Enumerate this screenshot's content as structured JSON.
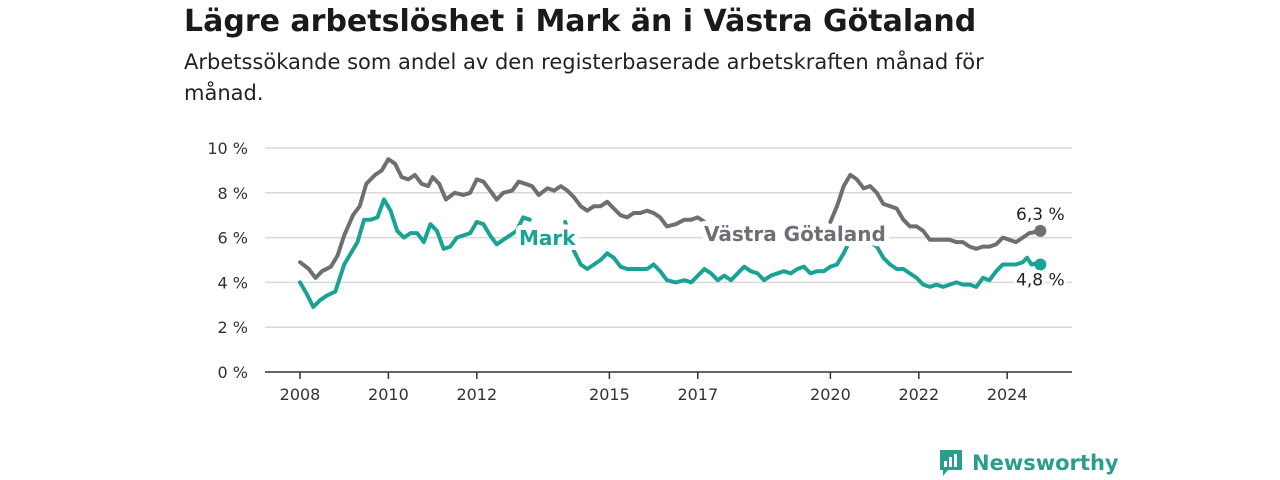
{
  "title": "Lägre arbetslöshet i Mark än i Västra Götaland",
  "subtitle": "Arbetssökande som andel av den registerbaserade arbetskraften månad för månad.",
  "brand": {
    "name": "Newsworthy",
    "icon": "bar-chart-speech-bubble-icon"
  },
  "colors": {
    "mark": "#1aa394",
    "vg": "#6e6e73",
    "brand": "#2a9d8f"
  },
  "chart_data": {
    "type": "line",
    "ylim": [
      0,
      10
    ],
    "yticks": [
      "0 %",
      "2 %",
      "4 %",
      "6 %",
      "8 %",
      "10 %"
    ],
    "xlim": [
      2008.0,
      2024.75
    ],
    "xticks": [
      {
        "value": 2008,
        "label": "2008"
      },
      {
        "value": 2010,
        "label": "2010"
      },
      {
        "value": 2012,
        "label": "2012"
      },
      {
        "value": 2015,
        "label": "2015"
      },
      {
        "value": 2017,
        "label": "2017"
      },
      {
        "value": 2020,
        "label": "2020"
      },
      {
        "value": 2022,
        "label": "2022"
      },
      {
        "value": 2024,
        "label": "2024"
      }
    ],
    "grid": true,
    "series": [
      {
        "name": "Västra Götaland",
        "color": "#6e6e73",
        "end_label": "6,3 %",
        "points": [
          [
            2008.0,
            4.9
          ],
          [
            2008.2,
            4.6
          ],
          [
            2008.35,
            4.2
          ],
          [
            2008.5,
            4.5
          ],
          [
            2008.7,
            4.7
          ],
          [
            2008.85,
            5.2
          ],
          [
            2009.0,
            6.1
          ],
          [
            2009.2,
            7.0
          ],
          [
            2009.35,
            7.4
          ],
          [
            2009.5,
            8.4
          ],
          [
            2009.7,
            8.8
          ],
          [
            2009.85,
            9.0
          ],
          [
            2010.0,
            9.5
          ],
          [
            2010.15,
            9.3
          ],
          [
            2010.3,
            8.7
          ],
          [
            2010.45,
            8.6
          ],
          [
            2010.6,
            8.8
          ],
          [
            2010.75,
            8.4
          ],
          [
            2010.9,
            8.3
          ],
          [
            2011.0,
            8.7
          ],
          [
            2011.15,
            8.4
          ],
          [
            2011.3,
            7.7
          ],
          [
            2011.5,
            8.0
          ],
          [
            2011.7,
            7.9
          ],
          [
            2011.85,
            8.0
          ],
          [
            2012.0,
            8.6
          ],
          [
            2012.15,
            8.5
          ],
          [
            2012.3,
            8.1
          ],
          [
            2012.45,
            7.7
          ],
          [
            2012.6,
            8.0
          ],
          [
            2012.8,
            8.1
          ],
          [
            2012.95,
            8.5
          ],
          [
            2013.1,
            8.4
          ],
          [
            2013.25,
            8.3
          ],
          [
            2013.4,
            7.9
          ],
          [
            2013.6,
            8.2
          ],
          [
            2013.75,
            8.1
          ],
          [
            2013.9,
            8.3
          ],
          [
            2014.05,
            8.1
          ],
          [
            2014.2,
            7.8
          ],
          [
            2014.35,
            7.4
          ],
          [
            2014.5,
            7.2
          ],
          [
            2014.65,
            7.4
          ],
          [
            2014.8,
            7.4
          ],
          [
            2014.95,
            7.6
          ],
          [
            2015.1,
            7.3
          ],
          [
            2015.25,
            7.0
          ],
          [
            2015.4,
            6.9
          ],
          [
            2015.55,
            7.1
          ],
          [
            2015.7,
            7.1
          ],
          [
            2015.85,
            7.2
          ],
          [
            2016.0,
            7.1
          ],
          [
            2016.15,
            6.9
          ],
          [
            2016.3,
            6.5
          ],
          [
            2016.5,
            6.6
          ],
          [
            2016.7,
            6.8
          ],
          [
            2016.85,
            6.8
          ],
          [
            2017.0,
            6.9
          ],
          [
            2017.15,
            6.7
          ],
          [
            2020.0,
            6.7
          ],
          [
            2020.15,
            7.4
          ],
          [
            2020.3,
            8.3
          ],
          [
            2020.45,
            8.8
          ],
          [
            2020.6,
            8.6
          ],
          [
            2020.75,
            8.2
          ],
          [
            2020.9,
            8.3
          ],
          [
            2021.05,
            8.0
          ],
          [
            2021.2,
            7.5
          ],
          [
            2021.35,
            7.4
          ],
          [
            2021.5,
            7.3
          ],
          [
            2021.65,
            6.8
          ],
          [
            2021.8,
            6.5
          ],
          [
            2021.95,
            6.5
          ],
          [
            2022.1,
            6.3
          ],
          [
            2022.25,
            5.9
          ],
          [
            2022.4,
            5.9
          ],
          [
            2022.55,
            5.9
          ],
          [
            2022.7,
            5.9
          ],
          [
            2022.85,
            5.8
          ],
          [
            2023.0,
            5.8
          ],
          [
            2023.15,
            5.6
          ],
          [
            2023.3,
            5.5
          ],
          [
            2023.45,
            5.6
          ],
          [
            2023.6,
            5.6
          ],
          [
            2023.75,
            5.7
          ],
          [
            2023.9,
            6.0
          ],
          [
            2024.05,
            5.9
          ],
          [
            2024.2,
            5.8
          ],
          [
            2024.35,
            6.0
          ],
          [
            2024.5,
            6.2
          ],
          [
            2024.65,
            6.25
          ],
          [
            2024.75,
            6.3
          ]
        ]
      },
      {
        "name": "Mark",
        "color": "#1aa394",
        "end_label": "4,8 %",
        "points": [
          [
            2008.0,
            4.0
          ],
          [
            2008.15,
            3.5
          ],
          [
            2008.3,
            2.9
          ],
          [
            2008.45,
            3.2
          ],
          [
            2008.6,
            3.4
          ],
          [
            2008.8,
            3.6
          ],
          [
            2009.0,
            4.8
          ],
          [
            2009.15,
            5.3
          ],
          [
            2009.3,
            5.8
          ],
          [
            2009.45,
            6.8
          ],
          [
            2009.6,
            6.8
          ],
          [
            2009.75,
            6.9
          ],
          [
            2009.9,
            7.7
          ],
          [
            2010.05,
            7.2
          ],
          [
            2010.2,
            6.3
          ],
          [
            2010.35,
            6.0
          ],
          [
            2010.5,
            6.2
          ],
          [
            2010.65,
            6.2
          ],
          [
            2010.8,
            5.8
          ],
          [
            2010.95,
            6.6
          ],
          [
            2011.1,
            6.3
          ],
          [
            2011.25,
            5.5
          ],
          [
            2011.4,
            5.6
          ],
          [
            2011.55,
            6.0
          ],
          [
            2011.7,
            6.1
          ],
          [
            2011.85,
            6.2
          ],
          [
            2012.0,
            6.7
          ],
          [
            2012.15,
            6.6
          ],
          [
            2012.3,
            6.1
          ],
          [
            2012.45,
            5.7
          ],
          [
            2012.6,
            5.9
          ],
          [
            2012.75,
            6.1
          ],
          [
            2012.9,
            6.3
          ],
          [
            2013.05,
            6.9
          ],
          [
            2013.2,
            6.8
          ],
          [
            2014.0,
            6.7
          ],
          [
            2014.2,
            5.4
          ],
          [
            2014.35,
            4.8
          ],
          [
            2014.5,
            4.6
          ],
          [
            2014.65,
            4.8
          ],
          [
            2014.8,
            5.0
          ],
          [
            2014.95,
            5.3
          ],
          [
            2015.1,
            5.1
          ],
          [
            2015.25,
            4.7
          ],
          [
            2015.4,
            4.6
          ],
          [
            2015.55,
            4.6
          ],
          [
            2015.7,
            4.6
          ],
          [
            2015.85,
            4.6
          ],
          [
            2016.0,
            4.8
          ],
          [
            2016.15,
            4.5
          ],
          [
            2016.3,
            4.1
          ],
          [
            2016.5,
            4.0
          ],
          [
            2016.7,
            4.1
          ],
          [
            2016.85,
            4.0
          ],
          [
            2017.0,
            4.3
          ],
          [
            2017.15,
            4.6
          ],
          [
            2017.3,
            4.4
          ],
          [
            2017.45,
            4.1
          ],
          [
            2017.6,
            4.3
          ],
          [
            2017.75,
            4.1
          ],
          [
            2017.9,
            4.4
          ],
          [
            2018.05,
            4.7
          ],
          [
            2018.2,
            4.5
          ],
          [
            2018.35,
            4.4
          ],
          [
            2018.5,
            4.1
          ],
          [
            2018.65,
            4.3
          ],
          [
            2018.8,
            4.4
          ],
          [
            2018.95,
            4.5
          ],
          [
            2019.1,
            4.4
          ],
          [
            2019.25,
            4.6
          ],
          [
            2019.4,
            4.7
          ],
          [
            2019.55,
            4.4
          ],
          [
            2019.7,
            4.5
          ],
          [
            2019.85,
            4.5
          ],
          [
            2020.0,
            4.7
          ],
          [
            2020.15,
            4.8
          ],
          [
            2020.3,
            5.3
          ],
          [
            2020.45,
            5.9
          ],
          [
            2020.6,
            6.0
          ],
          [
            2020.75,
            5.9
          ],
          [
            2020.9,
            5.8
          ],
          [
            2021.05,
            5.6
          ],
          [
            2021.2,
            5.1
          ],
          [
            2021.35,
            4.8
          ],
          [
            2021.5,
            4.6
          ],
          [
            2021.65,
            4.6
          ],
          [
            2021.8,
            4.4
          ],
          [
            2021.95,
            4.2
          ],
          [
            2022.1,
            3.9
          ],
          [
            2022.25,
            3.8
          ],
          [
            2022.4,
            3.9
          ],
          [
            2022.55,
            3.8
          ],
          [
            2022.7,
            3.9
          ],
          [
            2022.85,
            4.0
          ],
          [
            2023.0,
            3.9
          ],
          [
            2023.15,
            3.9
          ],
          [
            2023.3,
            3.8
          ],
          [
            2023.45,
            4.2
          ],
          [
            2023.6,
            4.1
          ],
          [
            2023.75,
            4.5
          ],
          [
            2023.9,
            4.8
          ],
          [
            2024.05,
            4.8
          ],
          [
            2024.2,
            4.8
          ],
          [
            2024.35,
            4.9
          ],
          [
            2024.45,
            5.1
          ],
          [
            2024.55,
            4.8
          ],
          [
            2024.65,
            4.85
          ],
          [
            2024.75,
            4.8
          ]
        ]
      }
    ]
  }
}
